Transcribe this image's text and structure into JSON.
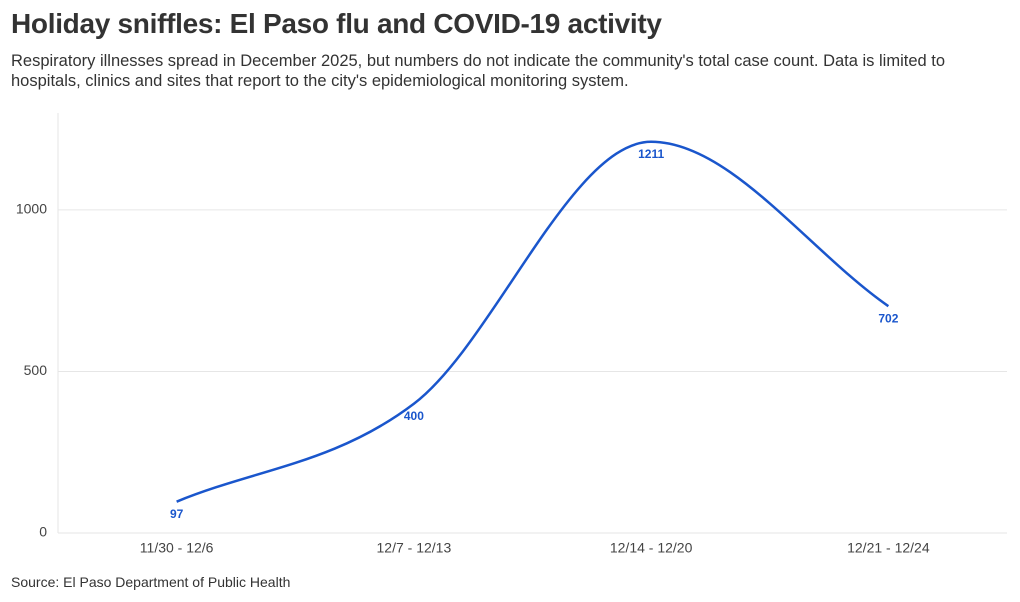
{
  "chart_data": {
    "type": "line",
    "title": "Holiday sniffles: El Paso flu and COVID-19 activity",
    "subtitle": "Respiratory illnesses spread in December 2025, but numbers do not indicate the community's total case count. Data is limited to hospitals, clinics and sites that report to the city's epidemiological monitoring system.",
    "source": "Source: El Paso Department of Public Health",
    "categories": [
      "11/30 - 12/6",
      "12/7 - 12/13",
      "12/14 - 12/20",
      "12/21 - 12/24"
    ],
    "values": [
      97,
      400,
      1211,
      702
    ],
    "color": "#1a56cc",
    "ylim": [
      0,
      1300
    ],
    "yticks": [
      0,
      500,
      1000
    ],
    "grid": true
  }
}
